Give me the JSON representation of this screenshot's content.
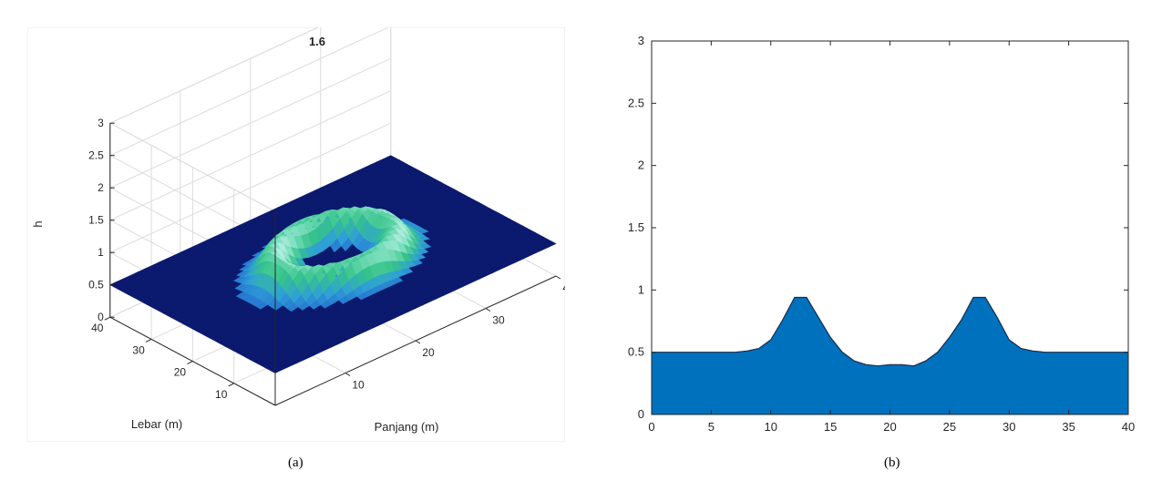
{
  "chart_data": [
    {
      "type": "surface",
      "title": "1.6",
      "xlabel": "Panjang (m)",
      "ylabel": "Lebar (m)",
      "zlabel": "h",
      "xlim": [
        0,
        40
      ],
      "ylim": [
        0,
        40
      ],
      "zlim": [
        0,
        3
      ],
      "xticks": [
        10,
        20,
        30,
        40
      ],
      "yticks": [
        10,
        20,
        30,
        40
      ],
      "zticks": [
        0,
        0.5,
        1,
        1.5,
        2,
        2.5,
        3
      ],
      "base_level": 0.5,
      "ring_peak": 0.93,
      "ring_center": [
        20,
        20
      ],
      "ring_radius": 7.5,
      "grid": true,
      "colormap": [
        "#0b1a6e",
        "#1f55c8",
        "#2f9fd8",
        "#36c38a",
        "#7fe0c0",
        "#e8fbff"
      ]
    },
    {
      "type": "area",
      "xlim": [
        0,
        40
      ],
      "ylim": [
        0,
        3
      ],
      "xticks": [
        0,
        5,
        10,
        15,
        20,
        25,
        30,
        35,
        40
      ],
      "yticks": [
        0,
        0.5,
        1,
        1.5,
        2,
        2.5,
        3
      ],
      "x": [
        0,
        5,
        7,
        8,
        9,
        10,
        11,
        12,
        13,
        14,
        15,
        16,
        17,
        18,
        19,
        20,
        21,
        22,
        23,
        24,
        25,
        26,
        27,
        28,
        29,
        30,
        31,
        32,
        33,
        35,
        40
      ],
      "y": [
        0.5,
        0.5,
        0.5,
        0.51,
        0.53,
        0.6,
        0.76,
        0.94,
        0.94,
        0.78,
        0.62,
        0.5,
        0.43,
        0.4,
        0.39,
        0.4,
        0.4,
        0.39,
        0.43,
        0.5,
        0.62,
        0.76,
        0.94,
        0.94,
        0.78,
        0.6,
        0.53,
        0.51,
        0.5,
        0.5,
        0.5
      ],
      "fill_color": "#0072bd",
      "edge_color": "#1a2a4a"
    }
  ],
  "captions": [
    "(a)",
    "(b)"
  ]
}
